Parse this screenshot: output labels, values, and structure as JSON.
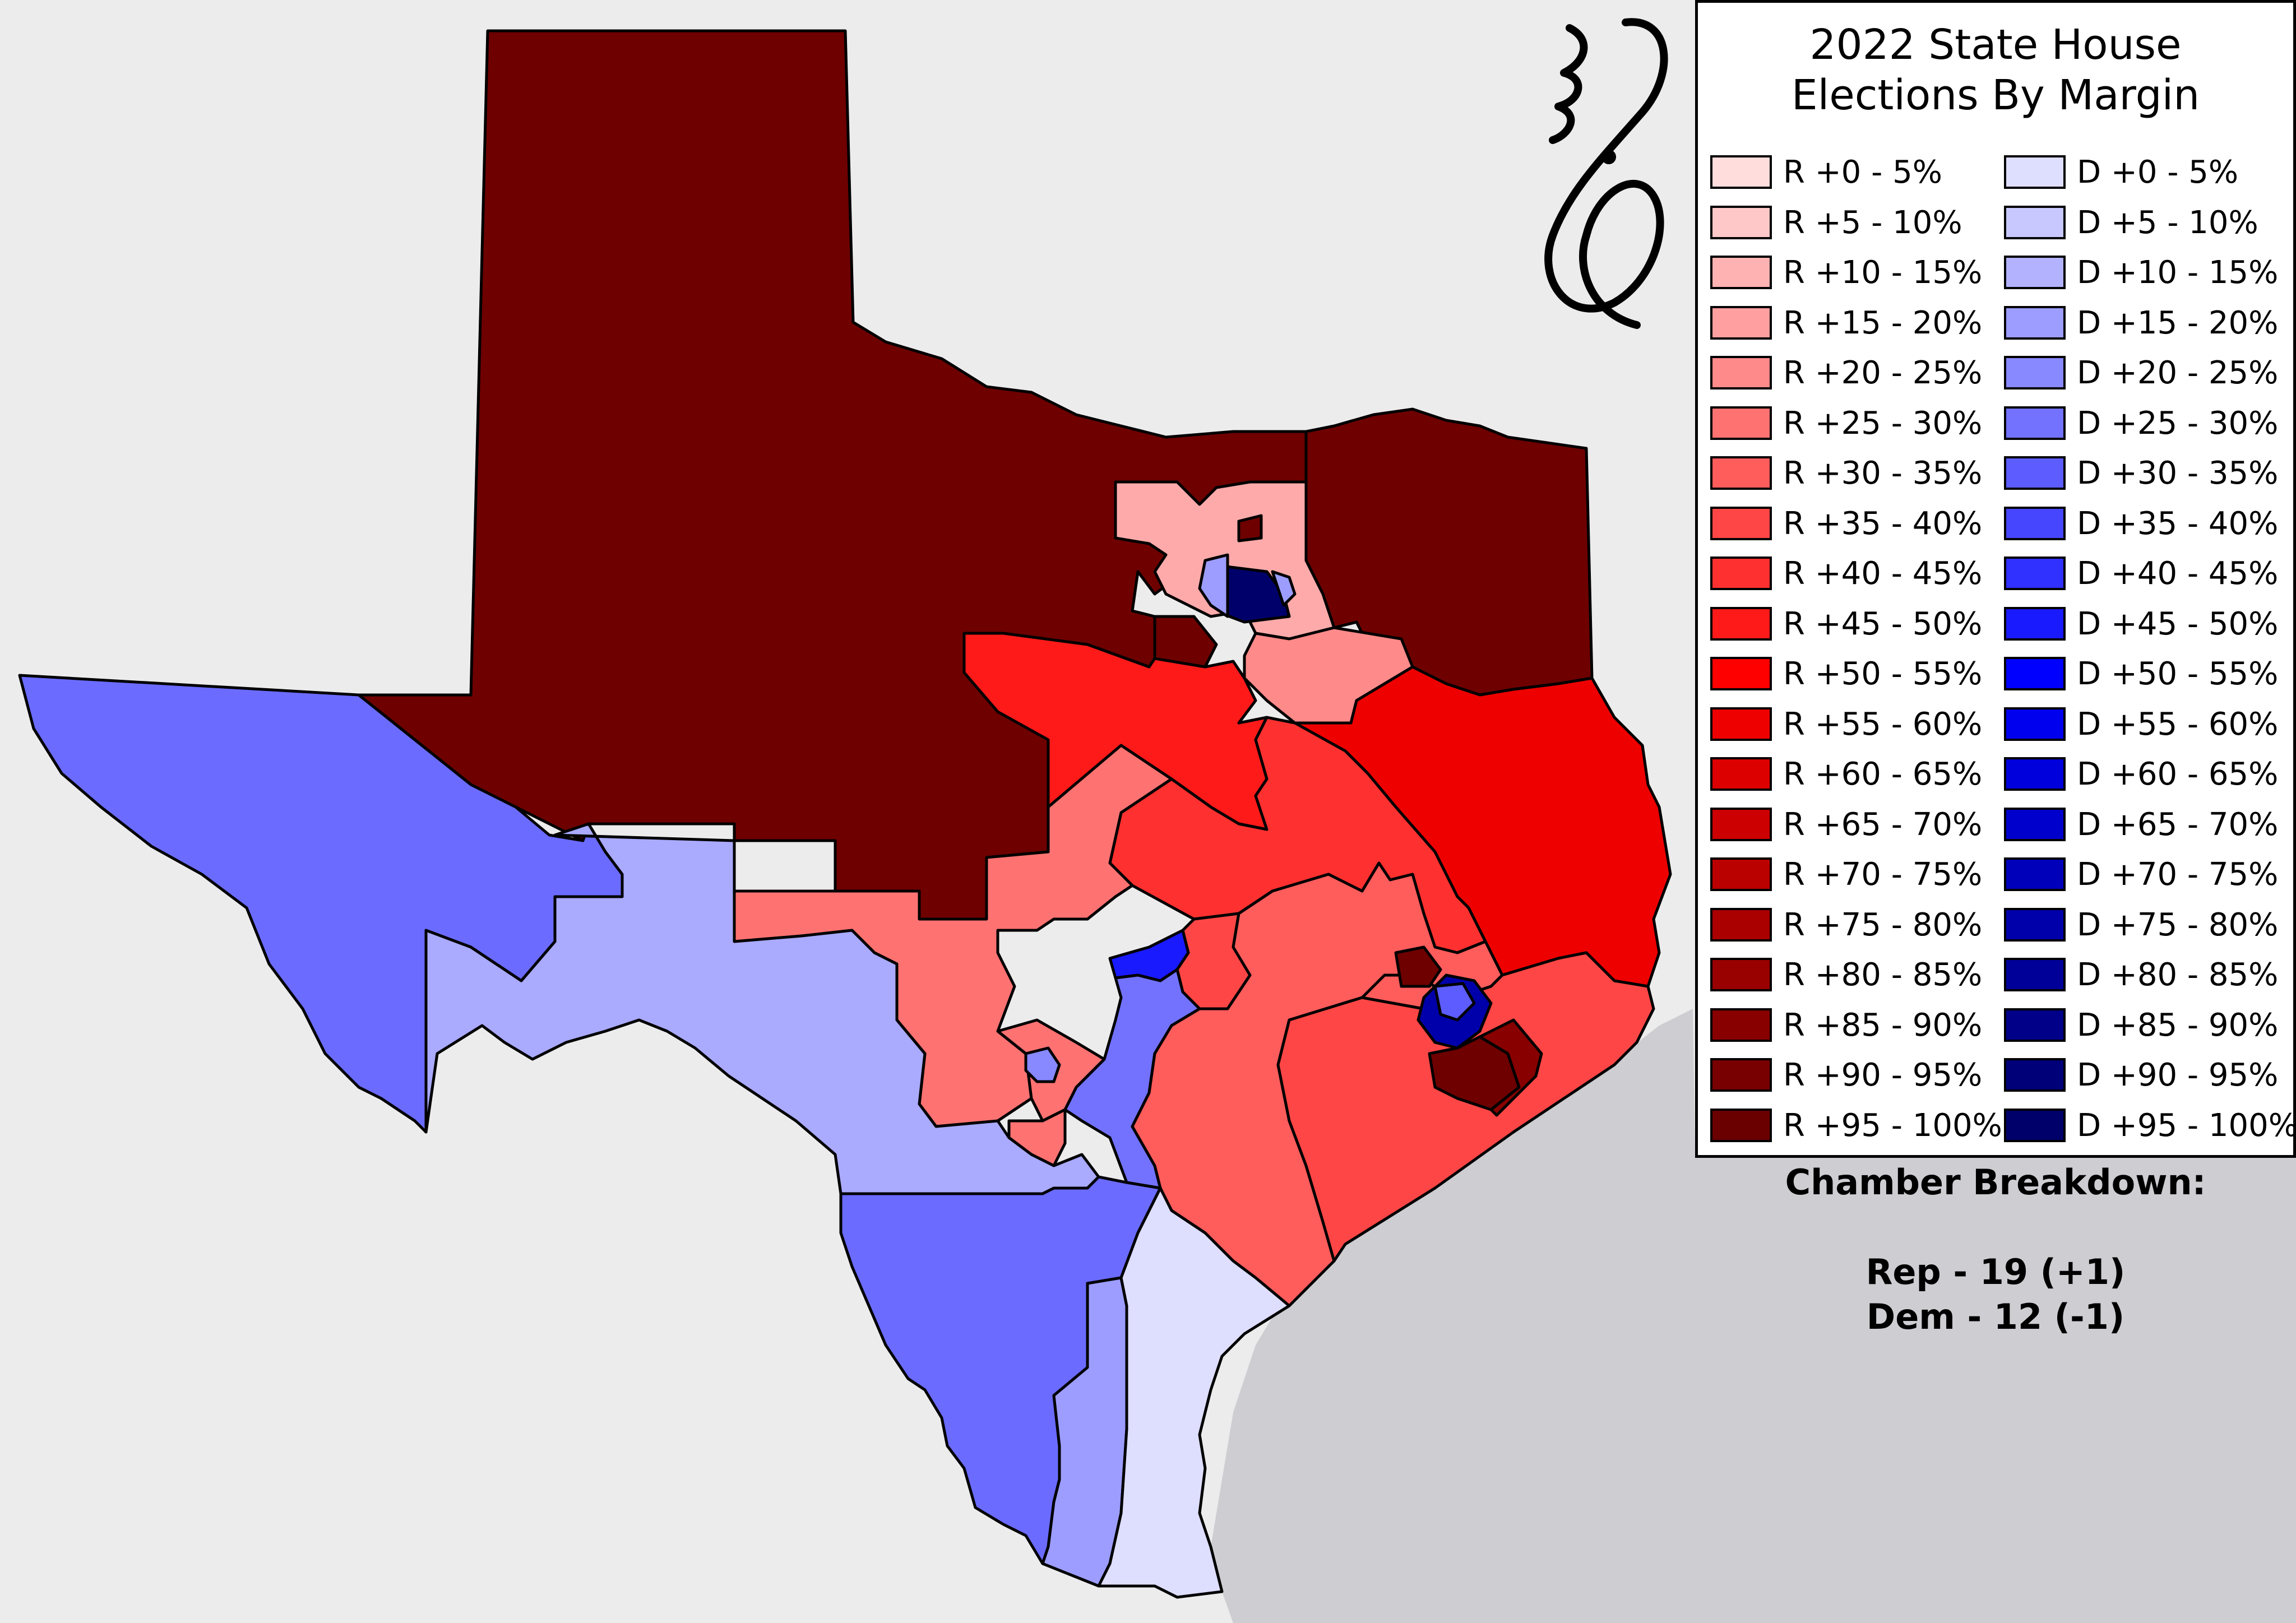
{
  "legend": {
    "title_line1": "2022 State House",
    "title_line2": "Elections By Margin",
    "rep": [
      {
        "label": "R +0 - 5%",
        "color": "#ffdddd"
      },
      {
        "label": "R +5 - 10%",
        "color": "#ffc8c8"
      },
      {
        "label": "R +10 - 15%",
        "color": "#ffb2b2"
      },
      {
        "label": "R +15 - 20%",
        "color": "#ff9f9f"
      },
      {
        "label": "R +20 - 25%",
        "color": "#ff8a8a"
      },
      {
        "label": "R +25 - 30%",
        "color": "#ff7272"
      },
      {
        "label": "R +30 - 35%",
        "color": "#ff5c5c"
      },
      {
        "label": "R +35 - 40%",
        "color": "#ff4646"
      },
      {
        "label": "R +40 - 45%",
        "color": "#ff3030"
      },
      {
        "label": "R +45 - 50%",
        "color": "#ff1a1a"
      },
      {
        "label": "R +50 - 55%",
        "color": "#ff0000"
      },
      {
        "label": "R +55 - 60%",
        "color": "#ee0000"
      },
      {
        "label": "R +60 - 65%",
        "color": "#dd0000"
      },
      {
        "label": "R +65 - 70%",
        "color": "#cc0000"
      },
      {
        "label": "R +70 - 75%",
        "color": "#bb0000"
      },
      {
        "label": "R +75 - 80%",
        "color": "#aa0000"
      },
      {
        "label": "R +80 - 85%",
        "color": "#990000"
      },
      {
        "label": "R +85 - 90%",
        "color": "#880000"
      },
      {
        "label": "R +90 - 95%",
        "color": "#780000"
      },
      {
        "label": "R +95 - 100%",
        "color": "#6a0000"
      }
    ],
    "dem": [
      {
        "label": "D +0 - 5%",
        "color": "#dedeff"
      },
      {
        "label": "D +5 - 10%",
        "color": "#c8c8ff"
      },
      {
        "label": "D +10 - 15%",
        "color": "#b2b2ff"
      },
      {
        "label": "D +15 - 20%",
        "color": "#9d9dff"
      },
      {
        "label": "D +20 - 25%",
        "color": "#8888ff"
      },
      {
        "label": "D +25 - 30%",
        "color": "#7272ff"
      },
      {
        "label": "D +30 - 35%",
        "color": "#5c5cff"
      },
      {
        "label": "D +35 - 40%",
        "color": "#4646ff"
      },
      {
        "label": "D +40 - 45%",
        "color": "#3030ff"
      },
      {
        "label": "D +45 - 50%",
        "color": "#1a1aff"
      },
      {
        "label": "D +50 - 55%",
        "color": "#0000ff"
      },
      {
        "label": "D +55 - 60%",
        "color": "#0000ee"
      },
      {
        "label": "D +60 - 65%",
        "color": "#0000dd"
      },
      {
        "label": "D +65 - 70%",
        "color": "#0000cc"
      },
      {
        "label": "D +70 - 75%",
        "color": "#0000bb"
      },
      {
        "label": "D +75 - 80%",
        "color": "#0000aa"
      },
      {
        "label": "D +80 - 85%",
        "color": "#000099"
      },
      {
        "label": "D +85 - 90%",
        "color": "#000088"
      },
      {
        "label": "D +90 - 95%",
        "color": "#000078"
      },
      {
        "label": "D +95 - 100%",
        "color": "#00006a"
      }
    ]
  },
  "breakdown": {
    "heading": "Chamber Breakdown:",
    "rep": "Rep - 19 (+1)",
    "dem": "Dem - 12 (-1)"
  },
  "colors": {
    "background": "#ececec",
    "gulf": "#cdcdd2"
  }
}
